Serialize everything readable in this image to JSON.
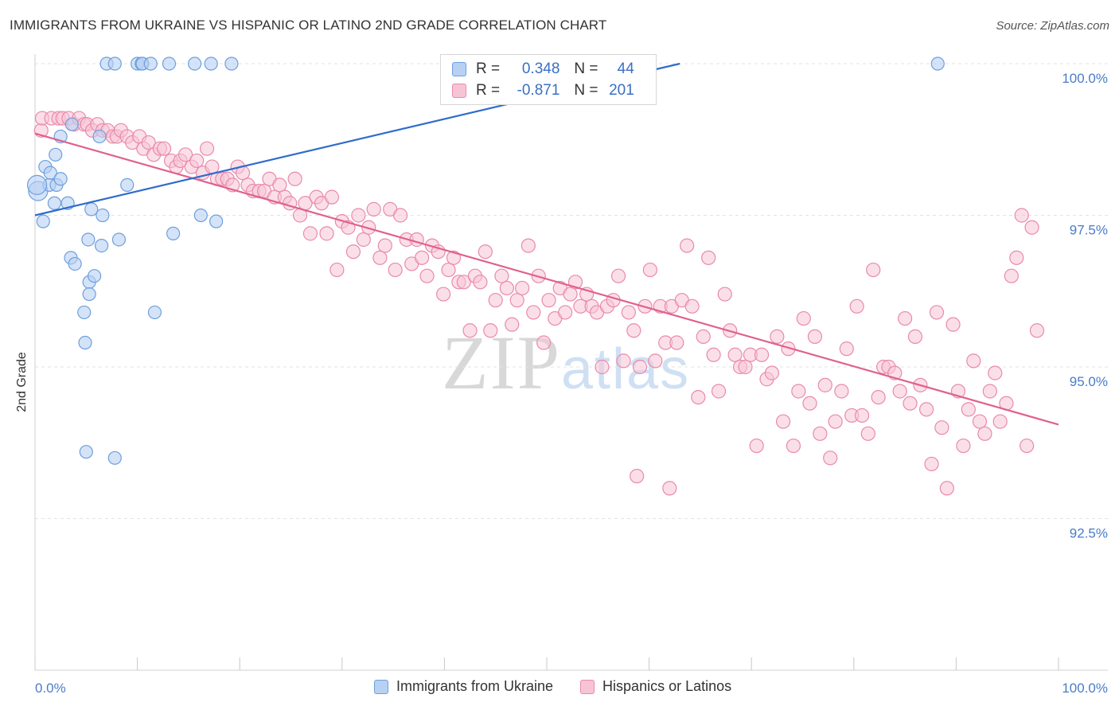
{
  "title": "IMMIGRANTS FROM UKRAINE VS HISPANIC OR LATINO 2ND GRADE CORRELATION CHART",
  "source": "Source: ZipAtlas.com",
  "watermark": {
    "zip": "ZIP",
    "atlas": "atlas"
  },
  "colors": {
    "blue_fill": "#b8d1f3",
    "blue_stroke": "#6e9fdc",
    "blue_line": "#2f6ccc",
    "pink_fill": "#f7c4d5",
    "pink_stroke": "#e98aab",
    "pink_line": "#e0608f",
    "grid": "#e3e3e3",
    "tick_text": "#4a7cc9"
  },
  "stats": {
    "blue": {
      "r_label": "R =",
      "r_value": "0.348",
      "n_label": "N =",
      "n_value": "44"
    },
    "pink": {
      "r_label": "R =",
      "r_value": "-0.871",
      "n_label": "N =",
      "n_value": "201"
    }
  },
  "legend": {
    "series1": "Immigrants from Ukraine",
    "series2": "Hispanics or Latinos"
  },
  "chart_data": {
    "type": "scatter",
    "title": "IMMIGRANTS FROM UKRAINE VS HISPANIC OR LATINO 2ND GRADE CORRELATION CHART",
    "xlabel": "",
    "ylabel": "2nd Grade",
    "xlim": [
      0,
      100
    ],
    "ylim": [
      90.0,
      100.2
    ],
    "x_tick_labels": [
      "0.0%",
      "100.0%"
    ],
    "y_ticks": [
      92.5,
      95.0,
      97.5,
      100.0
    ],
    "y_tick_labels": [
      "92.5%",
      "95.0%",
      "97.5%",
      "100.0%"
    ],
    "grid": true,
    "legend_position": "bottom",
    "series": [
      {
        "name": "Immigrants from Ukraine",
        "color": "#6e9fdc",
        "points": [
          [
            0.3,
            97.9
          ],
          [
            0.8,
            97.4
          ],
          [
            1.0,
            98.3
          ],
          [
            1.4,
            98.0
          ],
          [
            1.5,
            98.2
          ],
          [
            1.9,
            97.7
          ],
          [
            2.1,
            98.0
          ],
          [
            2.5,
            98.1
          ],
          [
            2.5,
            98.8
          ],
          [
            3.2,
            97.7
          ],
          [
            3.5,
            96.8
          ],
          [
            3.6,
            99.0
          ],
          [
            3.9,
            96.7
          ],
          [
            4.8,
            95.9
          ],
          [
            4.9,
            95.4
          ],
          [
            5.0,
            93.6
          ],
          [
            5.2,
            97.1
          ],
          [
            5.3,
            96.4
          ],
          [
            5.3,
            96.2
          ],
          [
            5.5,
            97.6
          ],
          [
            5.8,
            96.5
          ],
          [
            6.3,
            98.8
          ],
          [
            6.5,
            97.0
          ],
          [
            6.6,
            97.5
          ],
          [
            7.0,
            100.0
          ],
          [
            7.8,
            100.0
          ],
          [
            7.8,
            93.5
          ],
          [
            8.2,
            97.1
          ],
          [
            9.0,
            98.0
          ],
          [
            10.0,
            100.0
          ],
          [
            10.4,
            100.0
          ],
          [
            10.5,
            100.0
          ],
          [
            11.3,
            100.0
          ],
          [
            11.7,
            95.9
          ],
          [
            13.1,
            100.0
          ],
          [
            13.5,
            97.2
          ],
          [
            15.6,
            100.0
          ],
          [
            16.2,
            97.5
          ],
          [
            17.2,
            100.0
          ],
          [
            17.7,
            97.4
          ],
          [
            19.2,
            100.0
          ],
          [
            88.2,
            100.0
          ],
          [
            2.0,
            98.5
          ],
          [
            0.2,
            98.0
          ]
        ],
        "trend": {
          "x": [
            0,
            63.0
          ],
          "y": [
            97.5,
            100.0
          ]
        }
      },
      {
        "name": "Hispanics or Latinos",
        "color": "#e98aab",
        "points": [
          [
            0.6,
            98.9
          ],
          [
            0.7,
            99.1
          ],
          [
            1.6,
            99.1
          ],
          [
            2.3,
            99.1
          ],
          [
            2.7,
            99.1
          ],
          [
            3.3,
            99.1
          ],
          [
            3.8,
            99.0
          ],
          [
            4.3,
            99.1
          ],
          [
            4.8,
            99.0
          ],
          [
            5.1,
            99.0
          ],
          [
            5.6,
            98.9
          ],
          [
            6.1,
            99.0
          ],
          [
            6.6,
            98.9
          ],
          [
            7.1,
            98.9
          ],
          [
            7.6,
            98.8
          ],
          [
            8.0,
            98.8
          ],
          [
            8.4,
            98.9
          ],
          [
            9.0,
            98.8
          ],
          [
            9.5,
            98.7
          ],
          [
            10.2,
            98.8
          ],
          [
            10.6,
            98.6
          ],
          [
            11.1,
            98.7
          ],
          [
            11.6,
            98.5
          ],
          [
            12.2,
            98.6
          ],
          [
            12.6,
            98.6
          ],
          [
            13.3,
            98.4
          ],
          [
            13.8,
            98.3
          ],
          [
            14.2,
            98.4
          ],
          [
            14.7,
            98.5
          ],
          [
            15.3,
            98.3
          ],
          [
            15.8,
            98.4
          ],
          [
            16.4,
            98.2
          ],
          [
            16.8,
            98.6
          ],
          [
            17.3,
            98.3
          ],
          [
            17.8,
            98.1
          ],
          [
            18.3,
            98.1
          ],
          [
            18.8,
            98.1
          ],
          [
            19.3,
            98.0
          ],
          [
            19.8,
            98.3
          ],
          [
            20.3,
            98.2
          ],
          [
            20.8,
            98.0
          ],
          [
            21.3,
            97.9
          ],
          [
            21.9,
            97.9
          ],
          [
            22.4,
            97.9
          ],
          [
            22.9,
            98.1
          ],
          [
            23.4,
            97.8
          ],
          [
            23.9,
            98.0
          ],
          [
            24.4,
            97.8
          ],
          [
            24.9,
            97.7
          ],
          [
            25.4,
            98.1
          ],
          [
            25.9,
            97.5
          ],
          [
            26.4,
            97.7
          ],
          [
            26.9,
            97.2
          ],
          [
            27.5,
            97.8
          ],
          [
            28.0,
            97.7
          ],
          [
            28.5,
            97.2
          ],
          [
            29.0,
            97.8
          ],
          [
            29.5,
            96.6
          ],
          [
            30.0,
            97.4
          ],
          [
            30.6,
            97.3
          ],
          [
            31.1,
            96.9
          ],
          [
            31.6,
            97.5
          ],
          [
            32.1,
            97.1
          ],
          [
            32.6,
            97.3
          ],
          [
            33.1,
            97.6
          ],
          [
            33.7,
            96.8
          ],
          [
            34.2,
            97.0
          ],
          [
            34.7,
            97.6
          ],
          [
            35.2,
            96.6
          ],
          [
            35.7,
            97.5
          ],
          [
            36.3,
            97.1
          ],
          [
            36.8,
            96.7
          ],
          [
            37.3,
            97.1
          ],
          [
            37.8,
            96.8
          ],
          [
            38.3,
            96.5
          ],
          [
            38.8,
            97.0
          ],
          [
            39.4,
            96.9
          ],
          [
            39.9,
            96.2
          ],
          [
            40.4,
            96.6
          ],
          [
            40.9,
            96.8
          ],
          [
            41.4,
            96.4
          ],
          [
            41.9,
            96.4
          ],
          [
            42.5,
            95.6
          ],
          [
            43.0,
            96.5
          ],
          [
            43.5,
            96.4
          ],
          [
            44.0,
            96.9
          ],
          [
            44.5,
            95.6
          ],
          [
            45.0,
            96.1
          ],
          [
            45.6,
            96.5
          ],
          [
            46.1,
            96.3
          ],
          [
            46.6,
            95.7
          ],
          [
            47.1,
            96.1
          ],
          [
            47.6,
            96.3
          ],
          [
            48.2,
            97.0
          ],
          [
            48.7,
            95.9
          ],
          [
            49.2,
            96.5
          ],
          [
            49.7,
            95.4
          ],
          [
            50.2,
            96.1
          ],
          [
            50.8,
            95.8
          ],
          [
            51.3,
            96.3
          ],
          [
            51.8,
            95.9
          ],
          [
            52.3,
            96.2
          ],
          [
            52.8,
            96.4
          ],
          [
            53.3,
            96.0
          ],
          [
            53.9,
            96.2
          ],
          [
            54.4,
            96.0
          ],
          [
            54.9,
            95.9
          ],
          [
            55.4,
            95.0
          ],
          [
            55.9,
            96.0
          ],
          [
            56.5,
            96.1
          ],
          [
            57.0,
            96.5
          ],
          [
            57.5,
            95.1
          ],
          [
            58.0,
            95.9
          ],
          [
            58.5,
            95.6
          ],
          [
            59.1,
            95.0
          ],
          [
            59.6,
            96.0
          ],
          [
            60.1,
            96.6
          ],
          [
            60.6,
            95.1
          ],
          [
            61.1,
            96.0
          ],
          [
            61.6,
            95.4
          ],
          [
            62.2,
            96.0
          ],
          [
            62.7,
            95.4
          ],
          [
            63.2,
            96.1
          ],
          [
            63.7,
            97.0
          ],
          [
            64.2,
            96.0
          ],
          [
            64.8,
            94.5
          ],
          [
            65.3,
            95.5
          ],
          [
            65.8,
            96.8
          ],
          [
            66.3,
            95.2
          ],
          [
            66.8,
            94.6
          ],
          [
            67.4,
            96.2
          ],
          [
            67.9,
            95.6
          ],
          [
            68.4,
            95.2
          ],
          [
            68.9,
            95.0
          ],
          [
            69.4,
            95.0
          ],
          [
            69.9,
            95.2
          ],
          [
            70.5,
            93.7
          ],
          [
            71.0,
            95.2
          ],
          [
            71.5,
            94.8
          ],
          [
            72.0,
            94.9
          ],
          [
            72.5,
            95.5
          ],
          [
            73.1,
            94.1
          ],
          [
            73.6,
            95.3
          ],
          [
            74.1,
            93.7
          ],
          [
            74.6,
            94.6
          ],
          [
            75.1,
            95.8
          ],
          [
            75.7,
            94.4
          ],
          [
            76.2,
            95.5
          ],
          [
            76.7,
            93.9
          ],
          [
            77.2,
            94.7
          ],
          [
            77.7,
            93.5
          ],
          [
            78.2,
            94.1
          ],
          [
            78.8,
            94.6
          ],
          [
            79.3,
            95.3
          ],
          [
            79.8,
            94.2
          ],
          [
            80.3,
            96.0
          ],
          [
            80.8,
            94.2
          ],
          [
            81.4,
            93.9
          ],
          [
            81.9,
            96.6
          ],
          [
            82.4,
            94.5
          ],
          [
            82.9,
            95.0
          ],
          [
            83.4,
            95.0
          ],
          [
            84.0,
            94.9
          ],
          [
            84.5,
            94.6
          ],
          [
            85.0,
            95.8
          ],
          [
            85.5,
            94.4
          ],
          [
            86.0,
            95.5
          ],
          [
            86.5,
            94.7
          ],
          [
            87.1,
            94.3
          ],
          [
            87.6,
            93.4
          ],
          [
            88.1,
            95.9
          ],
          [
            88.6,
            94.0
          ],
          [
            89.1,
            93.0
          ],
          [
            89.7,
            95.7
          ],
          [
            90.2,
            94.6
          ],
          [
            90.7,
            93.7
          ],
          [
            91.2,
            94.3
          ],
          [
            91.7,
            95.1
          ],
          [
            92.3,
            94.1
          ],
          [
            92.8,
            93.9
          ],
          [
            93.3,
            94.6
          ],
          [
            93.8,
            94.9
          ],
          [
            94.3,
            94.1
          ],
          [
            94.9,
            94.4
          ],
          [
            95.4,
            96.5
          ],
          [
            95.9,
            96.8
          ],
          [
            96.4,
            97.5
          ],
          [
            96.9,
            93.7
          ],
          [
            97.4,
            97.3
          ],
          [
            97.9,
            95.6
          ],
          [
            58.8,
            93.2
          ],
          [
            62.0,
            93.0
          ]
        ],
        "trend": {
          "x": [
            0,
            100
          ],
          "y": [
            98.85,
            94.05
          ]
        }
      }
    ]
  }
}
